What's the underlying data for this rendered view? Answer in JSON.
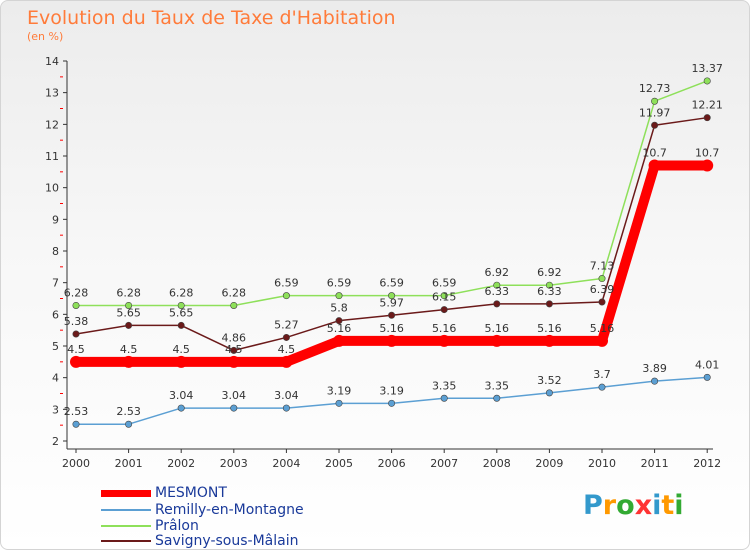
{
  "title": "Evolution du Taux de Taxe d'Habitation",
  "unit": "(en %)",
  "logo": {
    "letters": [
      "P",
      "r",
      "o",
      "x",
      "i",
      "t",
      "i"
    ],
    "colors": [
      "#3399cc",
      "#ff9900",
      "#33aa33",
      "#ff3333",
      "#3399cc",
      "#ff9900",
      "#33aa33"
    ]
  },
  "chart_data": {
    "type": "line",
    "title": "Evolution du Taux de Taxe d'Habitation",
    "ylabel": "(en %)",
    "xlabel": "",
    "x": [
      "2000",
      "2001",
      "2002",
      "2003",
      "2004",
      "2005",
      "2006",
      "2007",
      "2008",
      "2009",
      "2010",
      "2011",
      "2012"
    ],
    "yticks": [
      "2",
      "3",
      "4",
      "5",
      "6",
      "7",
      "8",
      "9",
      "10",
      "11",
      "12",
      "13",
      "14"
    ],
    "ylim": [
      2,
      14
    ],
    "grid": false,
    "legend_position": "bottom-left",
    "series": [
      {
        "name": "Savigny-sous-Mâlain",
        "color": "#6b1a1a",
        "values": [
          5.38,
          5.65,
          5.65,
          4.86,
          5.27,
          5.8,
          5.97,
          6.15,
          6.33,
          6.33,
          6.39,
          11.97,
          12.21
        ],
        "labels": [
          "5.38",
          "5.65",
          "5.65",
          "4.86",
          "5.27",
          "5.8",
          "5.97",
          "6.15",
          "6.33",
          "6.33",
          "6.39",
          "11.97",
          "12.21"
        ]
      },
      {
        "name": "Remilly-en-Montagne",
        "color": "#5b9fd3",
        "values": [
          2.53,
          2.53,
          3.04,
          3.04,
          3.04,
          3.19,
          3.19,
          3.35,
          3.35,
          3.52,
          3.7,
          3.89,
          4.01
        ],
        "labels": [
          "2.53",
          "2.53",
          "3.04",
          "3.04",
          "3.04",
          "3.19",
          "3.19",
          "3.35",
          "3.35",
          "3.52",
          "3.7",
          "3.89",
          "4.01"
        ]
      },
      {
        "name": "Prâlon",
        "color": "#8ee05a",
        "values": [
          6.28,
          6.28,
          6.28,
          6.28,
          6.59,
          6.59,
          6.59,
          6.59,
          6.92,
          6.92,
          7.13,
          12.73,
          13.37
        ],
        "labels": [
          "6.28",
          "6.28",
          "6.28",
          "6.28",
          "6.59",
          "6.59",
          "6.59",
          "6.59",
          "6.92",
          "6.92",
          "7.13",
          "12.73",
          "13.37"
        ]
      },
      {
        "name": "MESMONT",
        "color": "#ff0000",
        "values": [
          4.5,
          4.5,
          4.5,
          4.5,
          4.5,
          5.16,
          5.16,
          5.16,
          5.16,
          5.16,
          5.16,
          10.7,
          10.7
        ],
        "labels": [
          "4.5",
          "4.5",
          "4.5",
          "4.5",
          "4.5",
          "5.16",
          "5.16",
          "5.16",
          "5.16",
          "5.16",
          "5.16",
          "10.7",
          "10.7"
        ]
      }
    ],
    "legend": [
      {
        "name": "MESMONT",
        "color": "#ff0000",
        "text_color": "#1a3a9a"
      },
      {
        "name": "Remilly-en-Montagne",
        "color": "#5b9fd3",
        "text_color": "#1a3a9a"
      },
      {
        "name": "Prâlon",
        "color": "#8ee05a",
        "text_color": "#1a3a9a"
      },
      {
        "name": "Savigny-sous-Mâlain",
        "color": "#6b1a1a",
        "text_color": "#1a3a9a"
      }
    ]
  }
}
